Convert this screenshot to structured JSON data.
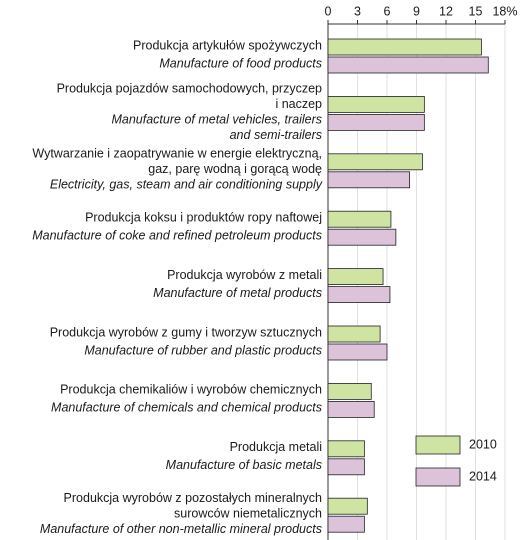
{
  "chart_data": {
    "type": "hbar",
    "categories": [
      {
        "pl": [
          "Produkcja artykułów spożywczych"
        ],
        "en": [
          "Manufacture of food products"
        ]
      },
      {
        "pl": [
          "Produkcja pojazdów samochodowych, przyczep",
          "i naczep"
        ],
        "en": [
          "Manufacture of metal vehicles, trailers",
          "and semi-trailers"
        ]
      },
      {
        "pl": [
          "Wytwarzanie i zaopatrywanie w energie elektryczną,",
          "gaz, parę wodną i gorącą wodę"
        ],
        "en": [
          "Electricity, gas, steam and air conditioning supply"
        ]
      },
      {
        "pl": [
          "Produkcja koksu i produktów ropy naftowej"
        ],
        "en": [
          "Manufacture of coke and refined petroleum products"
        ]
      },
      {
        "pl": [
          "Produkcja wyrobów z metali"
        ],
        "en": [
          "Manufacture of metal products"
        ]
      },
      {
        "pl": [
          "Produkcja wyrobów z gumy i tworzyw sztucznych"
        ],
        "en": [
          "Manufacture of rubber and plastic products"
        ]
      },
      {
        "pl": [
          "Produkcja chemikaliów i wyrobów chemicznych"
        ],
        "en": [
          "Manufacture of chemicals and chemical products"
        ]
      },
      {
        "pl": [
          "Produkcja metali"
        ],
        "en": [
          "Manufacture of basic metals"
        ]
      },
      {
        "pl": [
          "Produkcja wyrobów z pozostałych mineralnych",
          "surowców niemetalicznych"
        ],
        "en": [
          "Manufacture of other non-metallic mineral products"
        ]
      }
    ],
    "series": [
      {
        "name": "2010",
        "color": "#cfe4a3",
        "values": [
          15.6,
          9.8,
          9.6,
          6.4,
          5.6,
          5.3,
          4.4,
          3.7,
          4.0
        ]
      },
      {
        "name": "2014",
        "color": "#dcc3da",
        "values": [
          16.3,
          9.8,
          8.3,
          6.9,
          6.3,
          6.0,
          4.7,
          3.7,
          3.7
        ]
      }
    ],
    "xlim": [
      0,
      18
    ],
    "xticks": [
      0,
      3,
      6,
      9,
      12,
      15,
      {
        "value": 18,
        "label": "18%"
      }
    ],
    "grid": true,
    "legend": "bottom-right"
  }
}
